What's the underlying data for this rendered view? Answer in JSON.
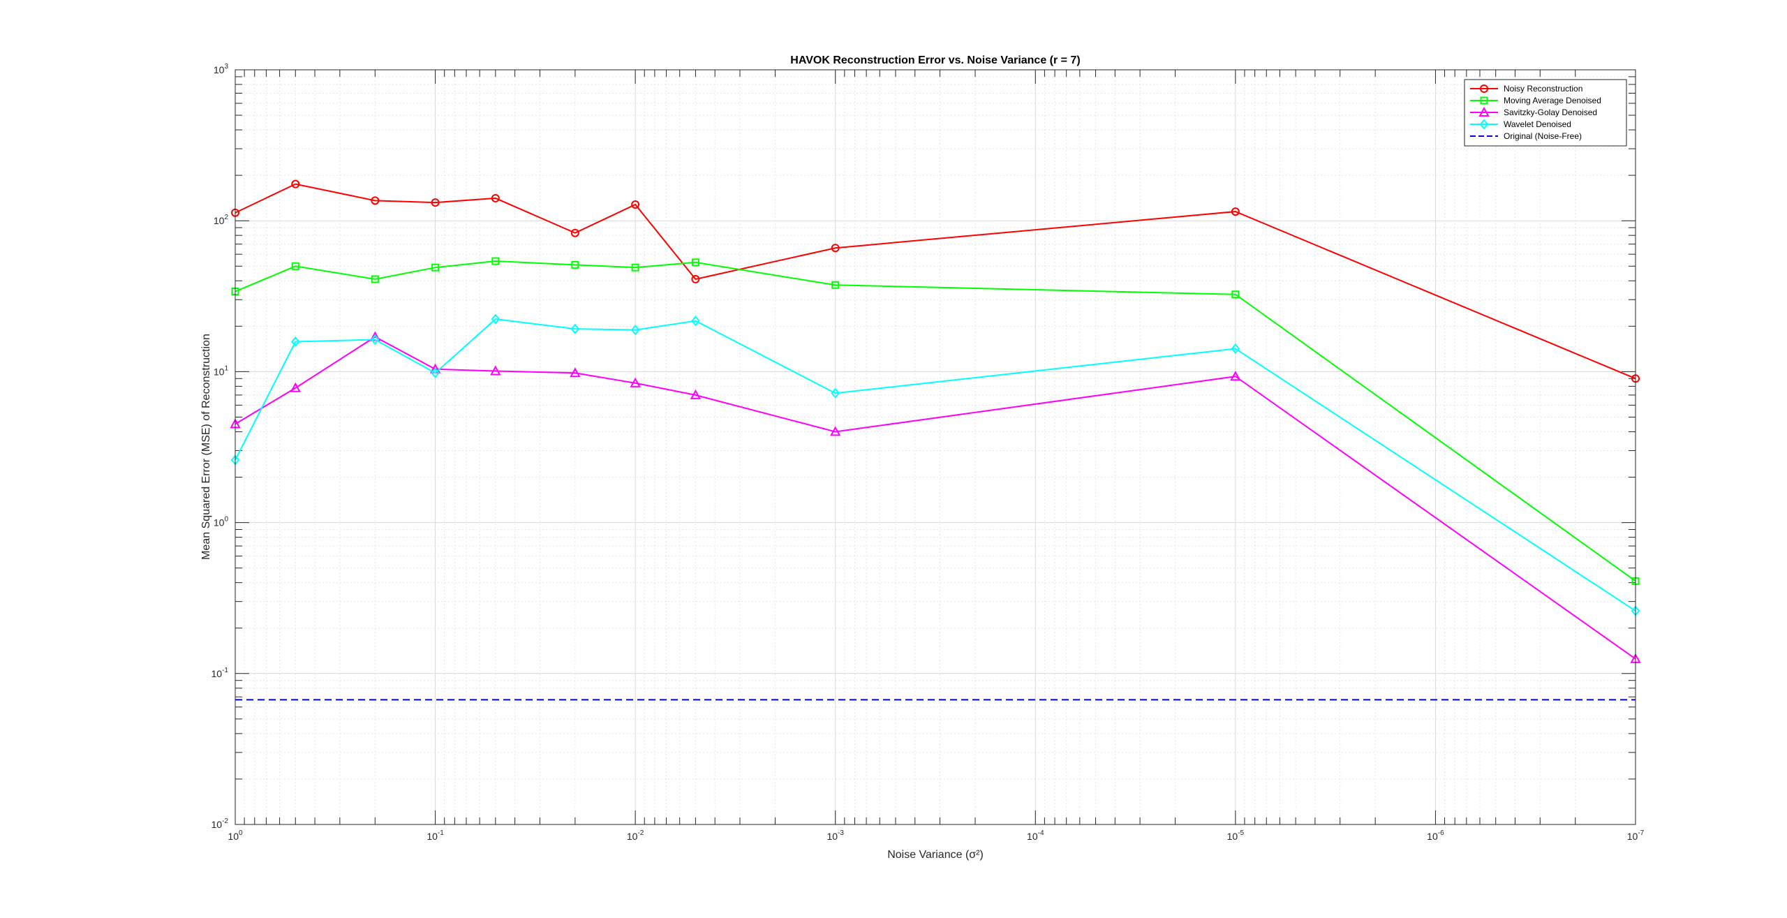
{
  "chart_data": {
    "type": "line",
    "title": "HAVOK Reconstruction Error vs. Noise Variance (r = 7)",
    "xlabel": "Noise Variance (σ²)",
    "ylabel": "Mean Squared Error (MSE) of Reconstruction",
    "x_scale": "log",
    "x_direction": "reverse",
    "y_scale": "log",
    "xlim": [
      1e-07,
      1
    ],
    "ylim": [
      0.01,
      1000
    ],
    "grid": true,
    "minor_grid": true,
    "legend_location": "top-right",
    "x_ticks": [
      {
        "value": 1,
        "base": "10",
        "exp": "0"
      },
      {
        "value": 0.1,
        "base": "10",
        "exp": "-1"
      },
      {
        "value": 0.01,
        "base": "10",
        "exp": "-2"
      },
      {
        "value": 0.001,
        "base": "10",
        "exp": "-3"
      },
      {
        "value": 0.0001,
        "base": "10",
        "exp": "-4"
      },
      {
        "value": 1e-05,
        "base": "10",
        "exp": "-5"
      },
      {
        "value": 1e-06,
        "base": "10",
        "exp": "-6"
      },
      {
        "value": 1e-07,
        "base": "10",
        "exp": "-7"
      }
    ],
    "y_ticks": [
      {
        "value": 1000,
        "base": "10",
        "exp": "3"
      },
      {
        "value": 100,
        "base": "10",
        "exp": "2"
      },
      {
        "value": 10,
        "base": "10",
        "exp": "1"
      },
      {
        "value": 1,
        "base": "10",
        "exp": "0"
      },
      {
        "value": 0.1,
        "base": "10",
        "exp": "-1"
      },
      {
        "value": 0.01,
        "base": "10",
        "exp": "-2"
      }
    ],
    "x": [
      1,
      0.5,
      0.2,
      0.1,
      0.05,
      0.02,
      0.01,
      0.005,
      0.001,
      1e-05,
      1e-07
    ],
    "series": [
      {
        "name": "Noisy Reconstruction",
        "color": "#ff0000",
        "marker": "circle",
        "line_style": "solid",
        "values": [
          113,
          175,
          136,
          132,
          141,
          83,
          128,
          41,
          66,
          115,
          9
        ]
      },
      {
        "name": "Moving Average Denoised",
        "color": "#00ff00",
        "marker": "square",
        "line_style": "solid",
        "values": [
          34,
          50,
          41,
          49,
          54,
          51,
          49,
          53,
          37.5,
          32.5,
          0.41
        ]
      },
      {
        "name": "Savitzky-Golay Denoised",
        "color": "#ff00ff",
        "marker": "triangle",
        "line_style": "solid",
        "values": [
          4.5,
          7.8,
          17,
          10.4,
          10.1,
          9.8,
          8.4,
          7,
          4,
          9.3,
          0.125
        ]
      },
      {
        "name": "Wavelet Denoised",
        "color": "#00ffff",
        "marker": "diamond",
        "line_style": "solid",
        "values": [
          2.6,
          15.8,
          16.3,
          9.8,
          22.3,
          19.2,
          18.9,
          21.7,
          7.2,
          14.2,
          0.26
        ]
      },
      {
        "name": "Original (Noise-Free)",
        "color": "#0000ff",
        "marker": "none",
        "line_style": "dashed",
        "values": [
          0.067,
          0.067,
          0.067,
          0.067,
          0.067,
          0.067,
          0.067,
          0.067,
          0.067,
          0.067,
          0.067
        ]
      }
    ]
  }
}
